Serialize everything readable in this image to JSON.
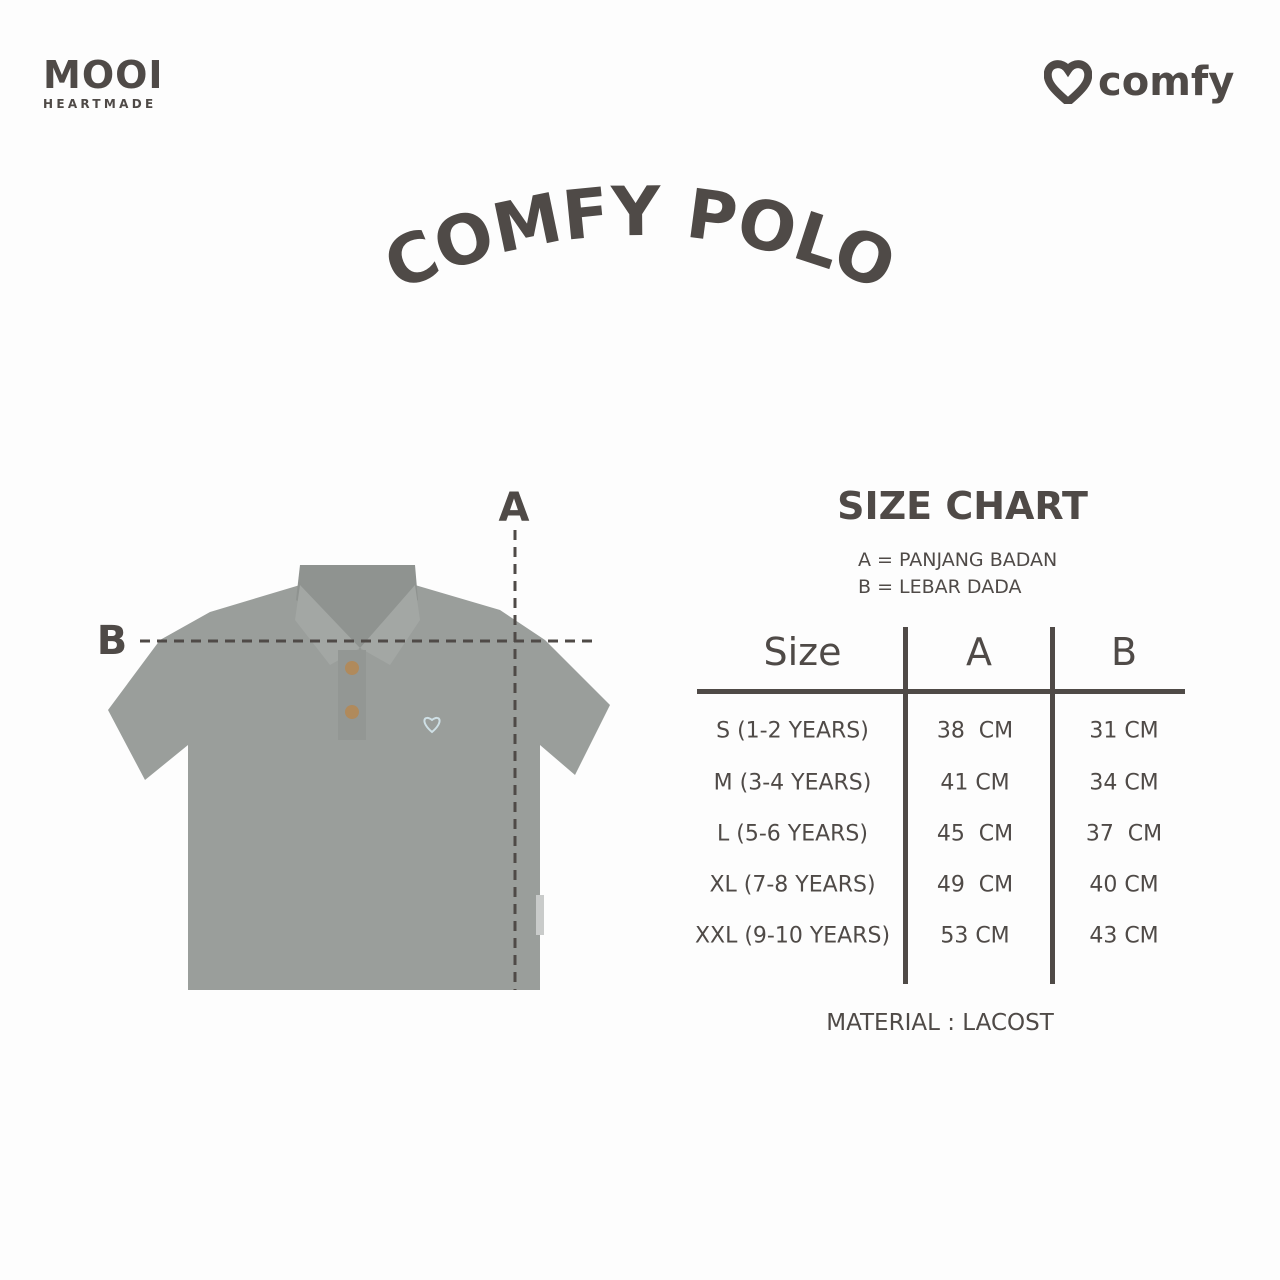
{
  "brand_left": {
    "name": "MOOI",
    "tagline": "HEARTMADE"
  },
  "brand_right": {
    "name": "comfy",
    "icon": "heart-icon"
  },
  "title": "COMFY POLO",
  "diagram": {
    "label_a": "A",
    "label_b": "B"
  },
  "size_chart": {
    "title": "SIZE CHART",
    "legend": [
      "A = PANJANG BADAN",
      "B = LEBAR DADA"
    ],
    "headers": [
      "Size",
      "A",
      "B"
    ],
    "rows": [
      [
        "S (1-2 YEARS)",
        "38  CM",
        "31 CM"
      ],
      [
        "M (3-4 YEARS)",
        "41 CM",
        "34 CM"
      ],
      [
        "L (5-6 YEARS)",
        "45  CM",
        "37  CM"
      ],
      [
        "XL (7-8 YEARS)",
        "49  CM",
        "40 CM"
      ],
      [
        "XXL (9-10 YEARS)",
        "53 CM",
        "43 CM"
      ]
    ],
    "material": "MATERIAL : LACOST"
  },
  "colors": {
    "text": "#4f4a47",
    "shirt": "#9a9e9b"
  }
}
